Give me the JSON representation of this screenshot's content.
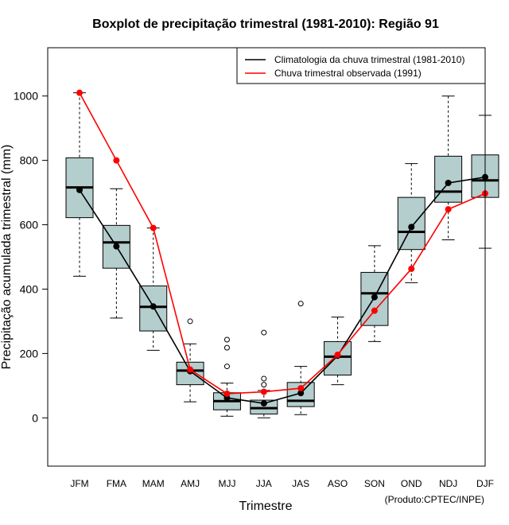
{
  "chart_data": {
    "type": "boxplot",
    "title": "Boxplot de precipitação trimestral (1981-2010): Região 91",
    "xlabel": "Trimestre",
    "ylabel": "Precipitação acumulada trimestral (mm)",
    "ylim": [
      -150,
      1150
    ],
    "yticks": [
      0,
      200,
      400,
      600,
      800,
      1000
    ],
    "ytick_labels": [
      "0",
      "200",
      "400",
      "600",
      "800",
      "1000"
    ],
    "categories": [
      "JFM",
      "FMA",
      "MAM",
      "AMJ",
      "MJJ",
      "JJA",
      "JAS",
      "ASO",
      "SON",
      "OND",
      "NDJ",
      "DJF"
    ],
    "boxes": [
      {
        "whisker_low": 440,
        "q1": 622,
        "median": 716,
        "q3": 808,
        "whisker_high": 1010,
        "outliers": []
      },
      {
        "whisker_low": 310,
        "q1": 465,
        "median": 545,
        "q3": 598,
        "whisker_high": 712,
        "outliers": []
      },
      {
        "whisker_low": 210,
        "q1": 270,
        "median": 345,
        "q3": 410,
        "whisker_high": 590,
        "outliers": []
      },
      {
        "whisker_low": 50,
        "q1": 103,
        "median": 147,
        "q3": 173,
        "whisker_high": 230,
        "outliers": [
          300
        ]
      },
      {
        "whisker_low": 5,
        "q1": 25,
        "median": 52,
        "q3": 78,
        "whisker_high": 108,
        "outliers": [
          243,
          218,
          160
        ]
      },
      {
        "whisker_low": 0,
        "q1": 12,
        "median": 30,
        "q3": 55,
        "whisker_high": 85,
        "outliers": [
          265,
          122,
          103
        ]
      },
      {
        "whisker_low": 10,
        "q1": 35,
        "median": 53,
        "q3": 110,
        "whisker_high": 160,
        "outliers": [
          355
        ]
      },
      {
        "whisker_low": 103,
        "q1": 133,
        "median": 190,
        "q3": 237,
        "whisker_high": 313,
        "outliers": []
      },
      {
        "whisker_low": 237,
        "q1": 287,
        "median": 387,
        "q3": 452,
        "whisker_high": 535,
        "outliers": []
      },
      {
        "whisker_low": 420,
        "q1": 523,
        "median": 578,
        "q3": 685,
        "whisker_high": 790,
        "outliers": []
      },
      {
        "whisker_low": 553,
        "q1": 670,
        "median": 703,
        "q3": 813,
        "whisker_high": 1000,
        "outliers": []
      },
      {
        "whisker_low": 527,
        "q1": 685,
        "median": 738,
        "q3": 817,
        "whisker_high": 940,
        "outliers": []
      }
    ],
    "series": [
      {
        "name": "Climatologia da chuva trimestral (1981-2010)",
        "color": "#000000",
        "values": [
          708,
          533,
          346,
          145,
          62,
          45,
          77,
          193,
          375,
          593,
          730,
          748
        ]
      },
      {
        "name": "Chuva trimestral observada (1991)",
        "color": "#ff0000",
        "values": [
          1010,
          800,
          590,
          150,
          75,
          81,
          92,
          196,
          333,
          463,
          648,
          697
        ]
      }
    ],
    "legend": "top-right",
    "box_fill": "#b4cdcd",
    "footer": "(Produto:CPTEC/INPE)"
  }
}
